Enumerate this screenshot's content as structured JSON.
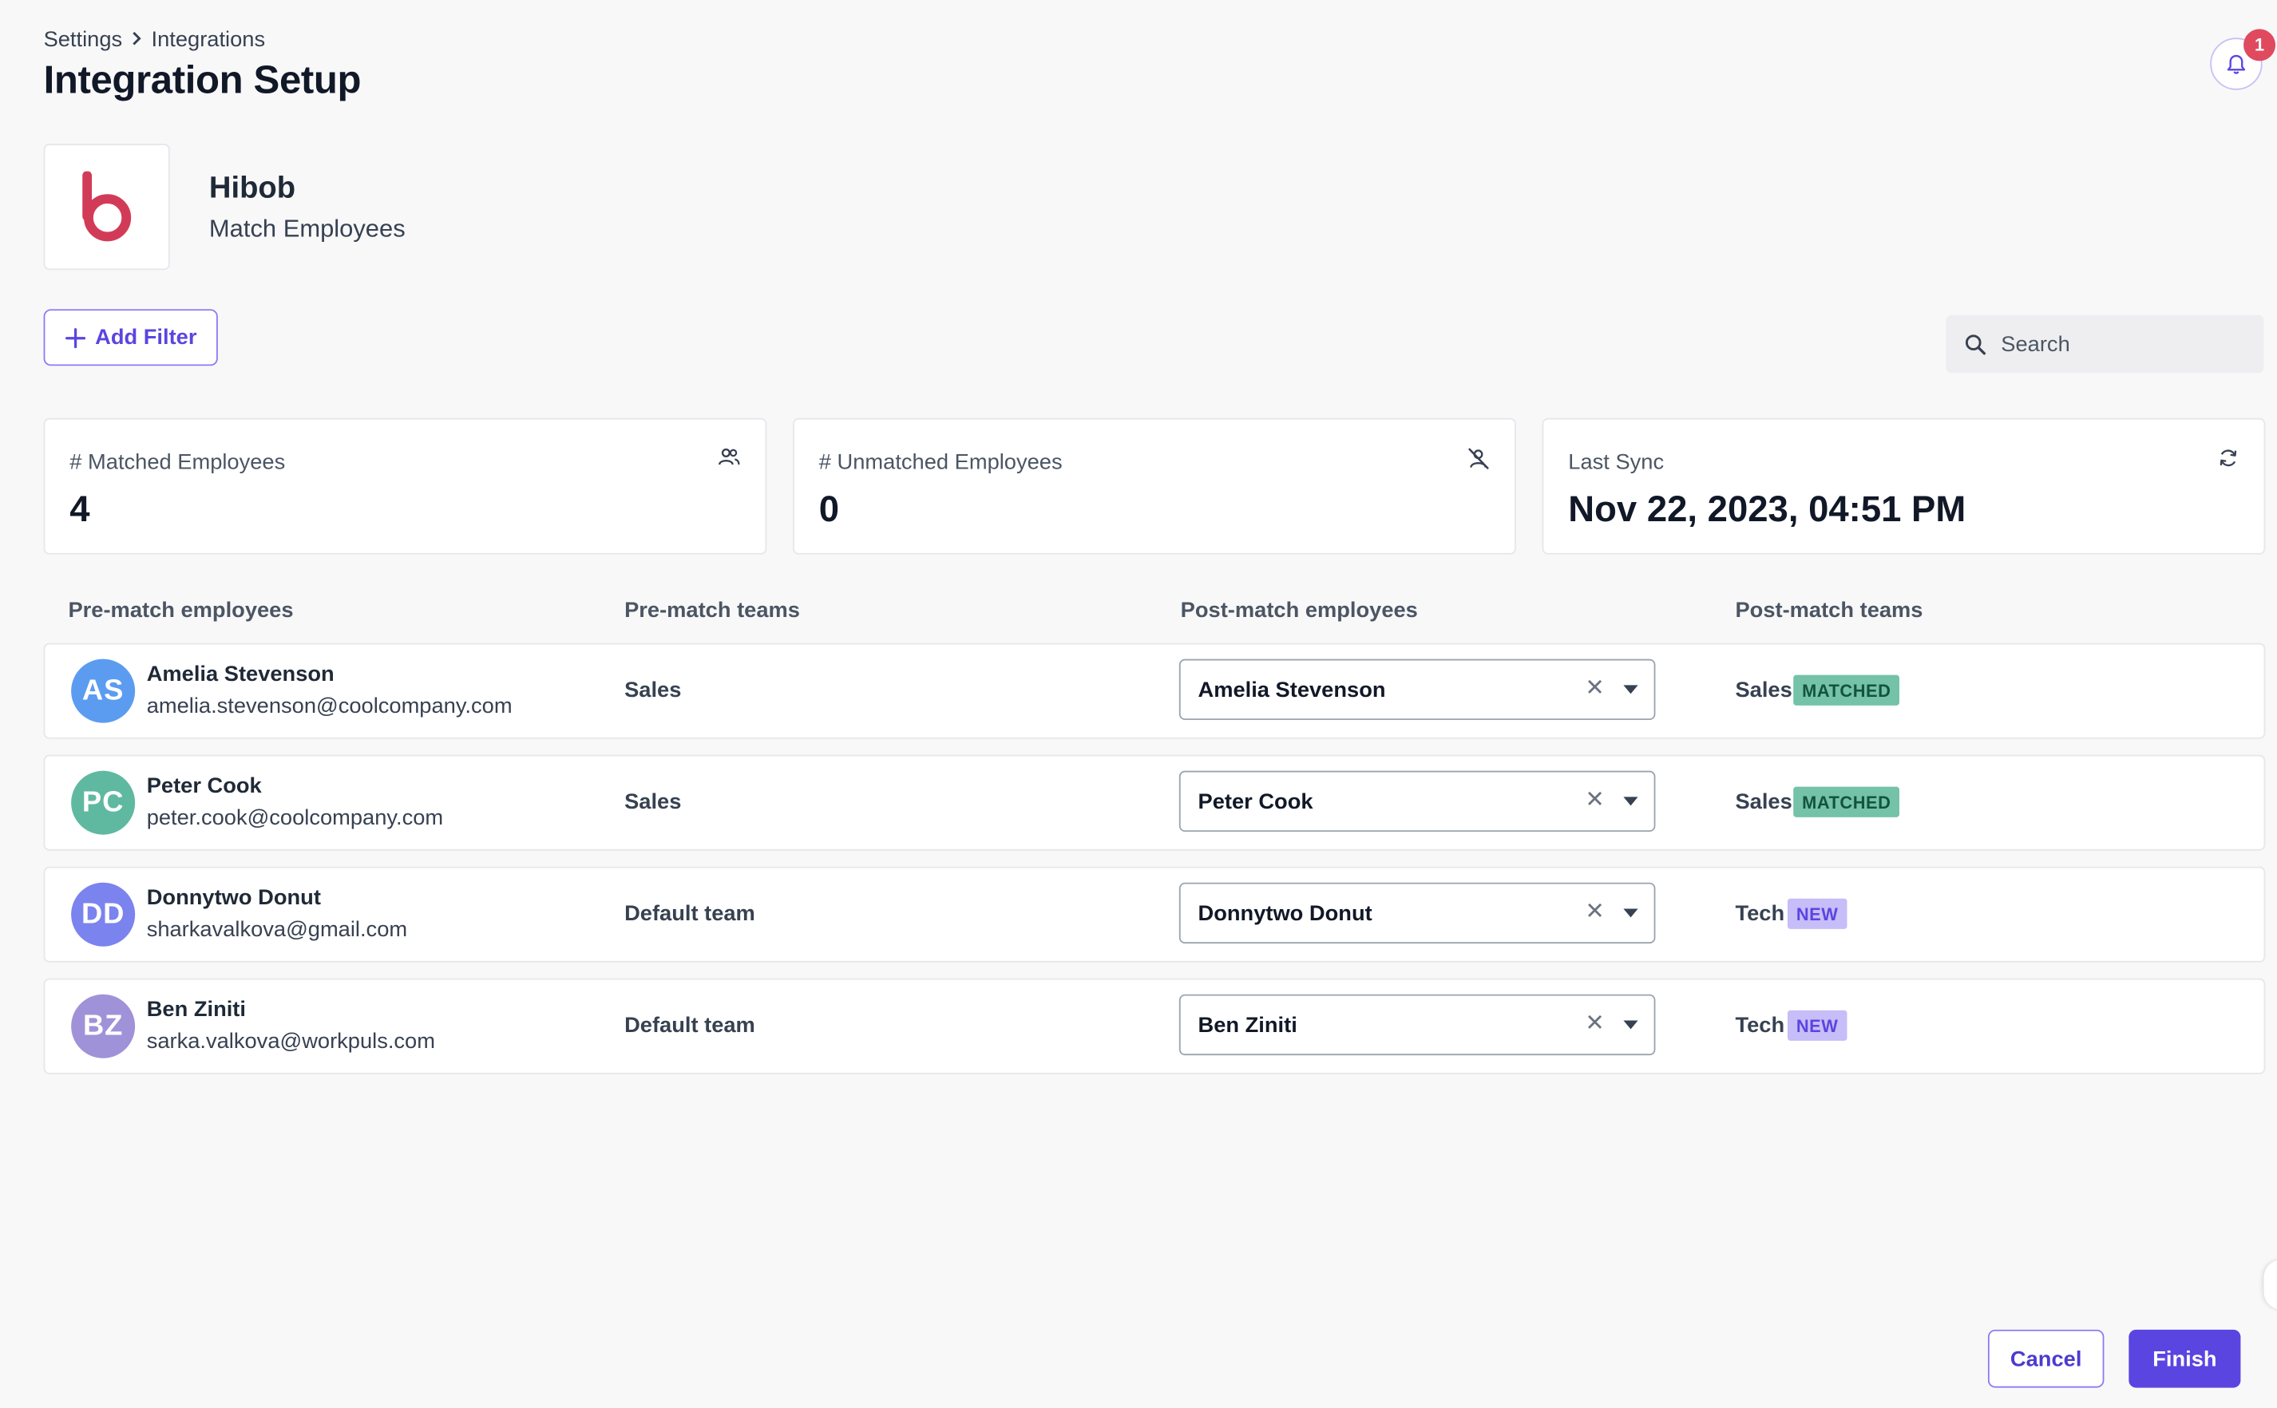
{
  "breadcrumb": {
    "items": [
      "Settings",
      "Integrations"
    ]
  },
  "page_title": "Integration Setup",
  "notifications": {
    "count": "1"
  },
  "integration": {
    "name": "Hibob",
    "subtitle": "Match Employees",
    "brand_color": "#d23b57"
  },
  "toolbar": {
    "add_filter_label": "Add Filter",
    "search_placeholder": "Search"
  },
  "stats": [
    {
      "label": "# Matched Employees",
      "value": "4",
      "icon": "users-icon"
    },
    {
      "label": "# Unmatched Employees",
      "value": "0",
      "icon": "user-off-icon"
    },
    {
      "label": "Last Sync",
      "value": "Nov 22, 2023, 04:51 PM",
      "icon": "sync-icon"
    }
  ],
  "table": {
    "headers": [
      "Pre-match employees",
      "Pre-match teams",
      "Post-match employees",
      "Post-match teams"
    ],
    "rows": [
      {
        "initials": "AS",
        "avatar_color": "#5b9cf0",
        "name": "Amelia Stevenson",
        "email": "amelia.stevenson@coolcompany.com",
        "pre_team": "Sales",
        "post_employee": "Amelia Stevenson",
        "post_team": "Sales",
        "status": "MATCHED"
      },
      {
        "initials": "PC",
        "avatar_color": "#5fb9a0",
        "name": "Peter Cook",
        "email": "peter.cook@coolcompany.com",
        "pre_team": "Sales",
        "post_employee": "Peter Cook",
        "post_team": "Sales",
        "status": "MATCHED"
      },
      {
        "initials": "DD",
        "avatar_color": "#7a83ee",
        "name": "Donnytwo Donut",
        "email": "sharkavalkova@gmail.com",
        "pre_team": "Default team",
        "post_employee": "Donnytwo Donut",
        "post_team": "Tech",
        "status": "NEW"
      },
      {
        "initials": "BZ",
        "avatar_color": "#a092d8",
        "name": "Ben Ziniti",
        "email": "sarka.valkova@workpuls.com",
        "pre_team": "Default team",
        "post_employee": "Ben Ziniti",
        "post_team": "Tech",
        "status": "NEW"
      }
    ]
  },
  "footer": {
    "cancel_label": "Cancel",
    "finish_label": "Finish"
  },
  "colors": {
    "accent": "#5b45e0",
    "matched_bg": "#74c2a8",
    "new_bg": "#c7bdf8",
    "notification": "#e04a5f"
  }
}
